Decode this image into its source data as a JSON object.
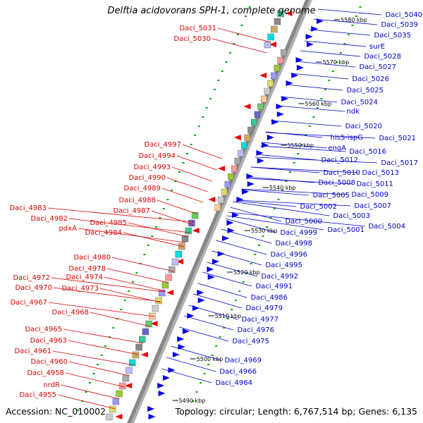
{
  "title": "Delftia acidovorans SPH-1, complete genome",
  "accession": "Accession: NC_010002",
  "topology": "Topology: circular; Length: 6,767,514 bp; Genes: 6,135",
  "colors": {
    "forward_label": "#0000cc",
    "reverse_label": "#dd0000",
    "forward_arrow": "#0000ee",
    "reverse_arrow": "#ee0000",
    "backbone": "#888888",
    "tick": "#00aa00"
  },
  "ticks": [
    {
      "label": "5580 kbp"
    },
    {
      "label": "5570 kbp"
    },
    {
      "label": "5560 kbp"
    },
    {
      "label": "5550 kbp"
    },
    {
      "label": "5540 kbp"
    },
    {
      "label": "5530 kbp"
    },
    {
      "label": "5520 kbp"
    },
    {
      "label": "5510 kbp"
    },
    {
      "label": "5500 kbp"
    },
    {
      "label": "5490 kbp"
    }
  ],
  "forward_genes": [
    "Daci_5040",
    "Daci_5039",
    "Daci_5035",
    "surE",
    "Daci_5028",
    "Daci_5027",
    "Daci_5026",
    "Daci_5025",
    "Daci_5024",
    "ndk",
    "Daci_5020",
    "Daci_5021",
    "hisS-ispG",
    "Daci_5016",
    "engA",
    "Daci_5017",
    "Daci_5012",
    "Daci_5013",
    "Daci_5010",
    "Daci_5011",
    "Daci_5008",
    "Daci_5009",
    "Daci_5005",
    "Daci_5007",
    "Daci_5002",
    "Daci_5003",
    "Daci_5000",
    "Daci_5004",
    "Daci_5001",
    "Daci_4999",
    "Daci_4998",
    "Daci_4996",
    "Daci_4995",
    "Daci_4992",
    "Daci_4991",
    "Daci_4986",
    "Daci_4979",
    "Daci_4977",
    "Daci_4976",
    "Daci_4975",
    "Daci_4969",
    "Daci_4966",
    "Daci_4964"
  ],
  "reverse_genes": [
    "Daci_5031",
    "Daci_5030",
    "Daci_4997",
    "Daci_4994",
    "Daci_4993",
    "Daci_4990",
    "Daci_4989",
    "Daci_4988",
    "Daci_4987",
    "Daci_4983",
    "Daci_4985",
    "Daci_4982",
    "Daci_4984",
    "pdxA",
    "Daci_4980",
    "Daci_4978",
    "Daci_4974",
    "Daci_4972",
    "Daci_4970",
    "Daci_4973",
    "Daci_4967",
    "Daci_4968",
    "Daci_4965",
    "Daci_4963",
    "Daci_4961",
    "Daci_4960",
    "Daci_4958",
    "nrdR",
    "Daci_4955"
  ]
}
